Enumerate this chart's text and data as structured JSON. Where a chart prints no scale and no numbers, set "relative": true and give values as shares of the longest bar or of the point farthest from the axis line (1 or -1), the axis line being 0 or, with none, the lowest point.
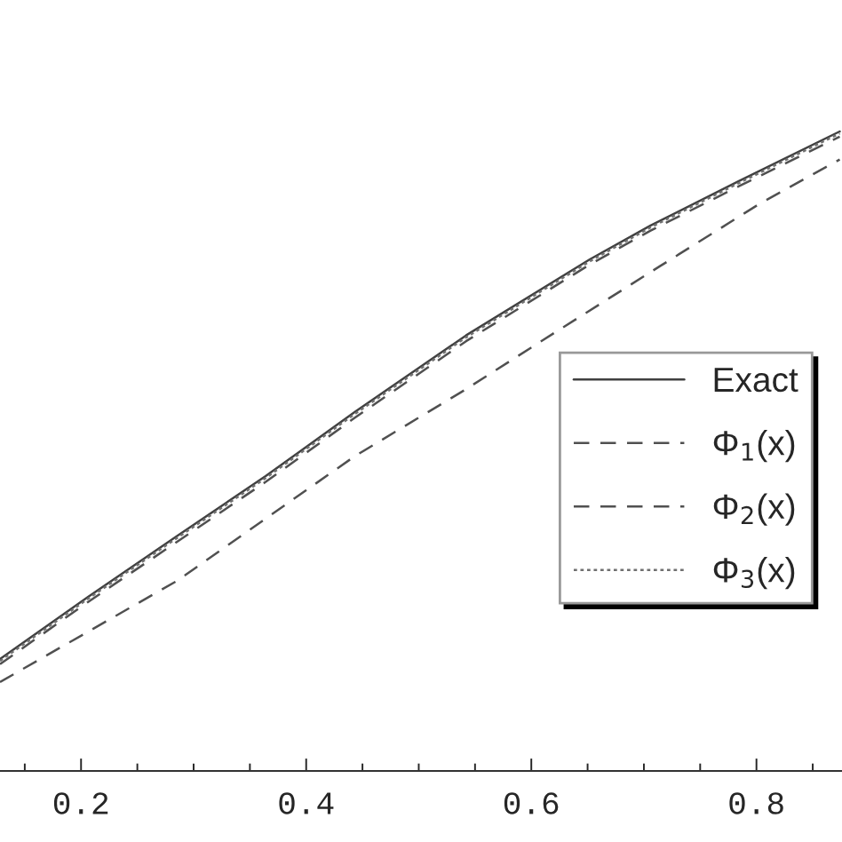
{
  "chart_data": {
    "type": "line",
    "relative": true,
    "xlim": [
      0.128,
      0.876
    ],
    "xticks": [
      0.2,
      0.4,
      0.6,
      0.8
    ],
    "tick_labels": "x",
    "legend": "right",
    "grid": false,
    "marker": "none",
    "series": [
      {
        "name": "Exact",
        "color": "#404040",
        "line_style": "solid",
        "x": [
          0.128,
          0.206,
          0.285,
          0.364,
          0.443,
          0.542,
          0.652,
          0.706,
          0.784,
          0.874
        ],
        "values": [
          0.175,
          0.272,
          0.367,
          0.461,
          0.561,
          0.681,
          0.8,
          0.853,
          0.922,
          1.0
        ]
      },
      {
        "name": "Φ$_{1}$(x)",
        "color": "#505050",
        "line_style": "dashed",
        "x": [
          0.128,
          0.285,
          0.443,
          0.542,
          0.624,
          0.714,
          0.802,
          0.848,
          0.874
        ],
        "values": [
          0.139,
          0.297,
          0.492,
          0.597,
          0.689,
          0.789,
          0.886,
          0.931,
          0.956
        ]
      },
      {
        "name": "Φ$_{2}$(x)",
        "color": "#505050",
        "line_style": "dashed",
        "x": [
          0.128,
          0.206,
          0.285,
          0.364,
          0.443,
          0.542,
          0.652,
          0.706,
          0.784,
          0.874
        ],
        "values": [
          0.167,
          0.264,
          0.358,
          0.452,
          0.552,
          0.672,
          0.792,
          0.845,
          0.914,
          0.992
        ]
      },
      {
        "name": "Φ$_{3}$(x)",
        "color": "#707070",
        "line_style": "dotted",
        "x": [
          0.128,
          0.206,
          0.285,
          0.364,
          0.443,
          0.542,
          0.652,
          0.706,
          0.784,
          0.874
        ],
        "values": [
          0.172,
          0.269,
          0.364,
          0.458,
          0.558,
          0.678,
          0.797,
          0.85,
          0.919,
          0.997
        ]
      }
    ]
  }
}
